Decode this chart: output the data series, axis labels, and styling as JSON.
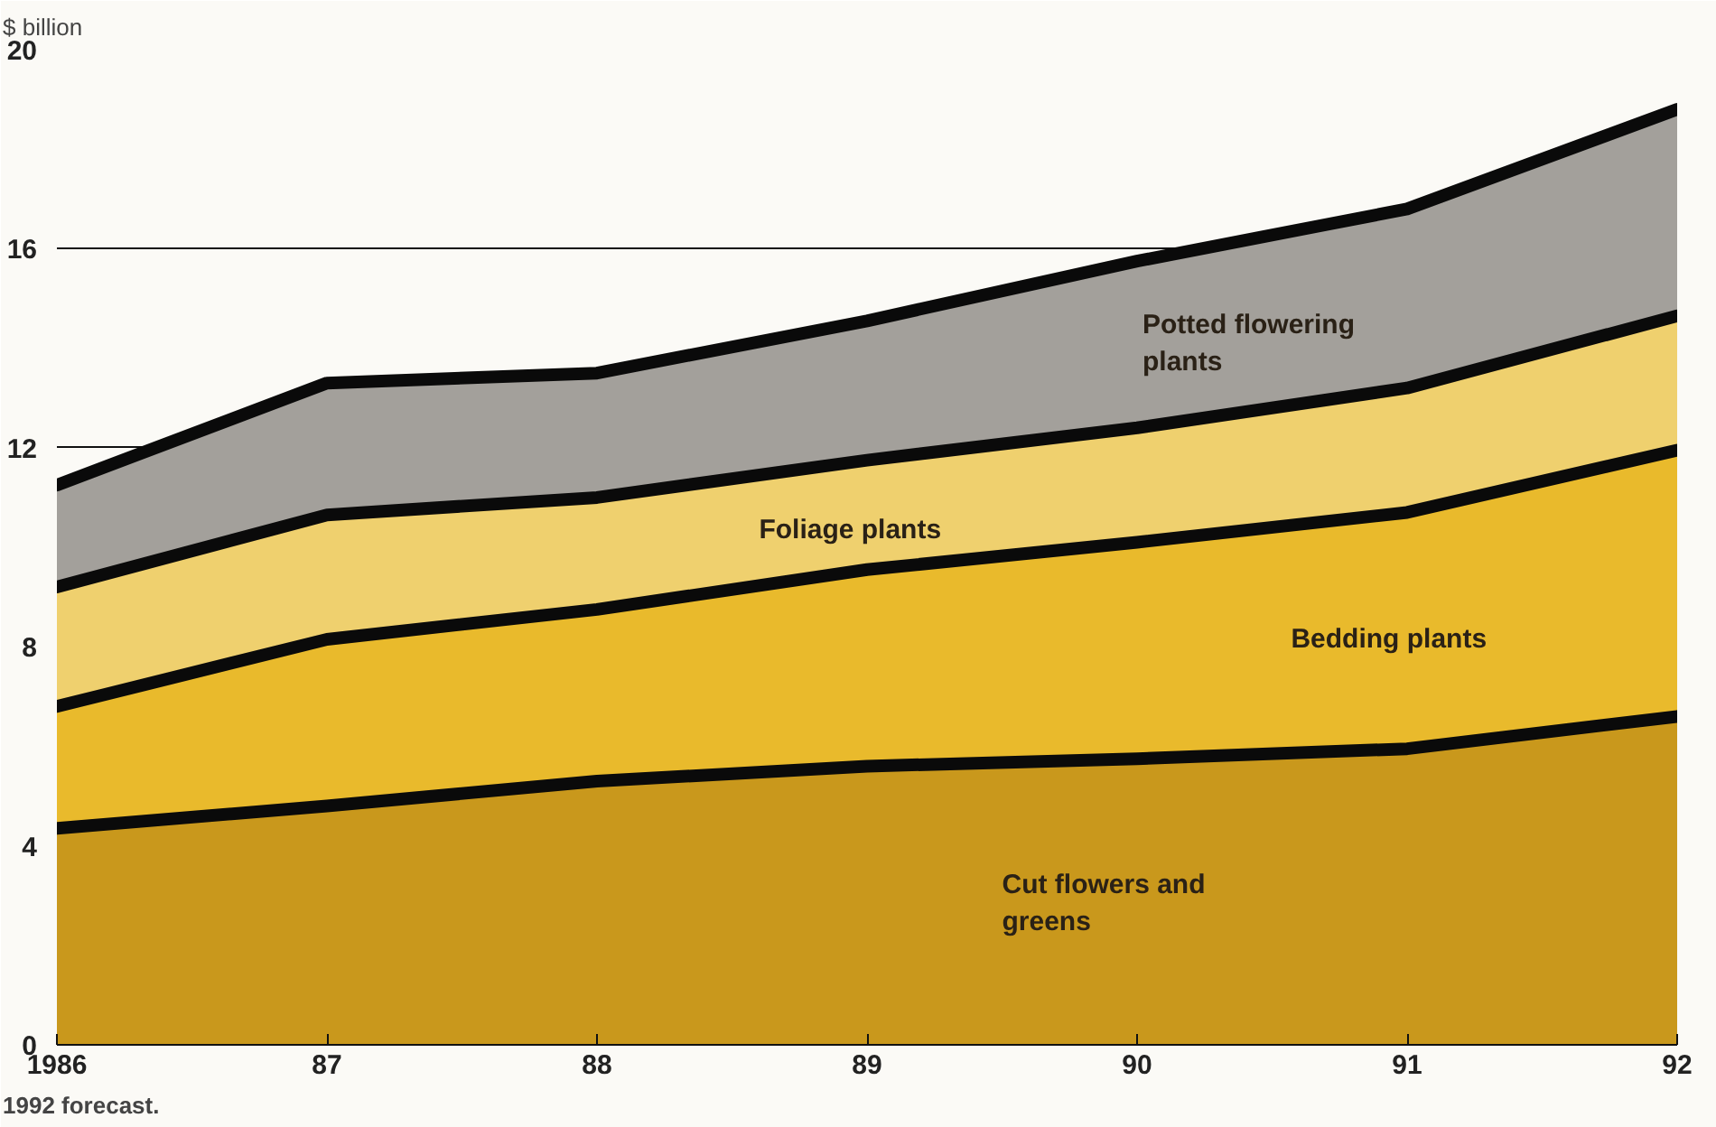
{
  "chart_data": {
    "type": "area",
    "stacked": true,
    "ylabel": "$ billion",
    "x": [
      1986,
      1987,
      1988,
      1989,
      1990,
      1991,
      1992
    ],
    "series": [
      {
        "name": "Cut flowers and\ngreens",
        "color": "#c9981c",
        "values": [
          4.35,
          4.8,
          5.3,
          5.6,
          5.75,
          5.95,
          6.6
        ]
      },
      {
        "name": "Bedding plants",
        "color": "#e9ba2c",
        "values": [
          2.45,
          3.35,
          3.45,
          3.95,
          4.35,
          4.75,
          5.35
        ]
      },
      {
        "name": "Foliage plants",
        "color": "#efd06e",
        "values": [
          2.4,
          2.5,
          2.25,
          2.2,
          2.3,
          2.5,
          2.7
        ]
      },
      {
        "name": "Potted flowering\nplants",
        "color": "#a3a09b",
        "values": [
          2.05,
          2.65,
          2.5,
          2.8,
          3.35,
          3.6,
          4.15
        ]
      }
    ],
    "xlim": [
      1986,
      1992
    ],
    "ylim": [
      0,
      20
    ],
    "xticks": [
      {
        "value": 1986,
        "label": "1986"
      },
      {
        "value": 1987,
        "label": "87"
      },
      {
        "value": 1988,
        "label": "88"
      },
      {
        "value": 1989,
        "label": "89"
      },
      {
        "value": 1990,
        "label": "90"
      },
      {
        "value": 1991,
        "label": "91"
      },
      {
        "value": 1992,
        "label": "92"
      }
    ],
    "yticks": [
      0,
      4,
      8,
      12,
      16,
      20
    ],
    "grid": "y",
    "annotations": [
      "1992 forecast."
    ]
  }
}
